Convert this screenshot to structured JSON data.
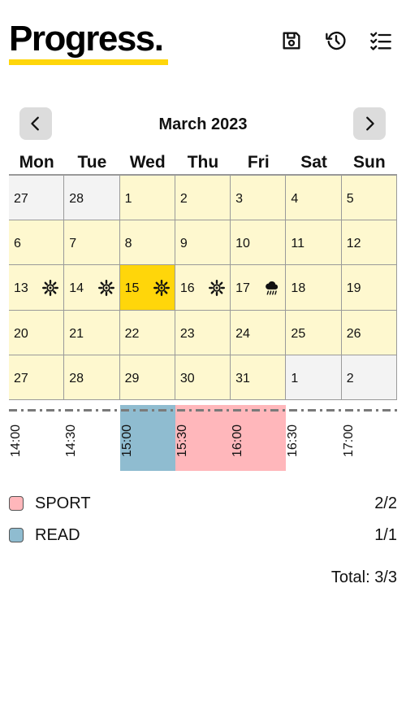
{
  "header": {
    "title": "Progress.",
    "accent_color": "#FFD60A",
    "actions": [
      {
        "name": "save-button",
        "icon": "floppy-disk-icon"
      },
      {
        "name": "history-button",
        "icon": "history-icon"
      },
      {
        "name": "checklist-button",
        "icon": "checklist-icon"
      }
    ]
  },
  "calendar": {
    "month_label": "March 2023",
    "prev_icon": "chevron-left-icon",
    "next_icon": "chevron-right-icon",
    "weekdays": [
      "Mon",
      "Tue",
      "Wed",
      "Thu",
      "Fri",
      "Sat",
      "Sun"
    ],
    "days": [
      {
        "label": "27",
        "in_month": false
      },
      {
        "label": "28",
        "in_month": false
      },
      {
        "label": "1",
        "in_month": true
      },
      {
        "label": "2",
        "in_month": true
      },
      {
        "label": "3",
        "in_month": true
      },
      {
        "label": "4",
        "in_month": true
      },
      {
        "label": "5",
        "in_month": true
      },
      {
        "label": "6",
        "in_month": true
      },
      {
        "label": "7",
        "in_month": true
      },
      {
        "label": "8",
        "in_month": true
      },
      {
        "label": "9",
        "in_month": true
      },
      {
        "label": "10",
        "in_month": true
      },
      {
        "label": "11",
        "in_month": true
      },
      {
        "label": "12",
        "in_month": true
      },
      {
        "label": "13",
        "in_month": true,
        "weather": "sun-icon"
      },
      {
        "label": "14",
        "in_month": true,
        "weather": "sun-icon"
      },
      {
        "label": "15",
        "in_month": true,
        "weather": "sun-icon",
        "today": true
      },
      {
        "label": "16",
        "in_month": true,
        "weather": "sun-icon"
      },
      {
        "label": "17",
        "in_month": true,
        "weather": "rain-cloud-icon"
      },
      {
        "label": "18",
        "in_month": true
      },
      {
        "label": "19",
        "in_month": true
      },
      {
        "label": "20",
        "in_month": true
      },
      {
        "label": "21",
        "in_month": true
      },
      {
        "label": "22",
        "in_month": true
      },
      {
        "label": "23",
        "in_month": true
      },
      {
        "label": "24",
        "in_month": true
      },
      {
        "label": "25",
        "in_month": true
      },
      {
        "label": "26",
        "in_month": true
      },
      {
        "label": "27",
        "in_month": true
      },
      {
        "label": "28",
        "in_month": true
      },
      {
        "label": "29",
        "in_month": true
      },
      {
        "label": "30",
        "in_month": true
      },
      {
        "label": "31",
        "in_month": true
      },
      {
        "label": "1",
        "in_month": false
      },
      {
        "label": "2",
        "in_month": false
      }
    ],
    "colors": {
      "in_month": "#FEF8CF",
      "out_month": "#F3F3F3",
      "today": "#FFD60A"
    }
  },
  "timeline": {
    "times": [
      "14:00",
      "14:30",
      "15:00",
      "15:30",
      "16:00",
      "16:30",
      "17:00"
    ],
    "blocks": [
      {
        "category": "READ",
        "start": "15:00",
        "end": "15:30",
        "color": "#8FBCD0"
      },
      {
        "category": "SPORT",
        "start": "15:30",
        "end": "16:30",
        "color": "#FFB7BB"
      }
    ]
  },
  "legend": [
    {
      "name": "SPORT",
      "count": "2/2",
      "color": "#FFB7BB"
    },
    {
      "name": "READ",
      "count": "1/1",
      "color": "#8FBCD0"
    }
  ],
  "total": "Total: 3/3"
}
